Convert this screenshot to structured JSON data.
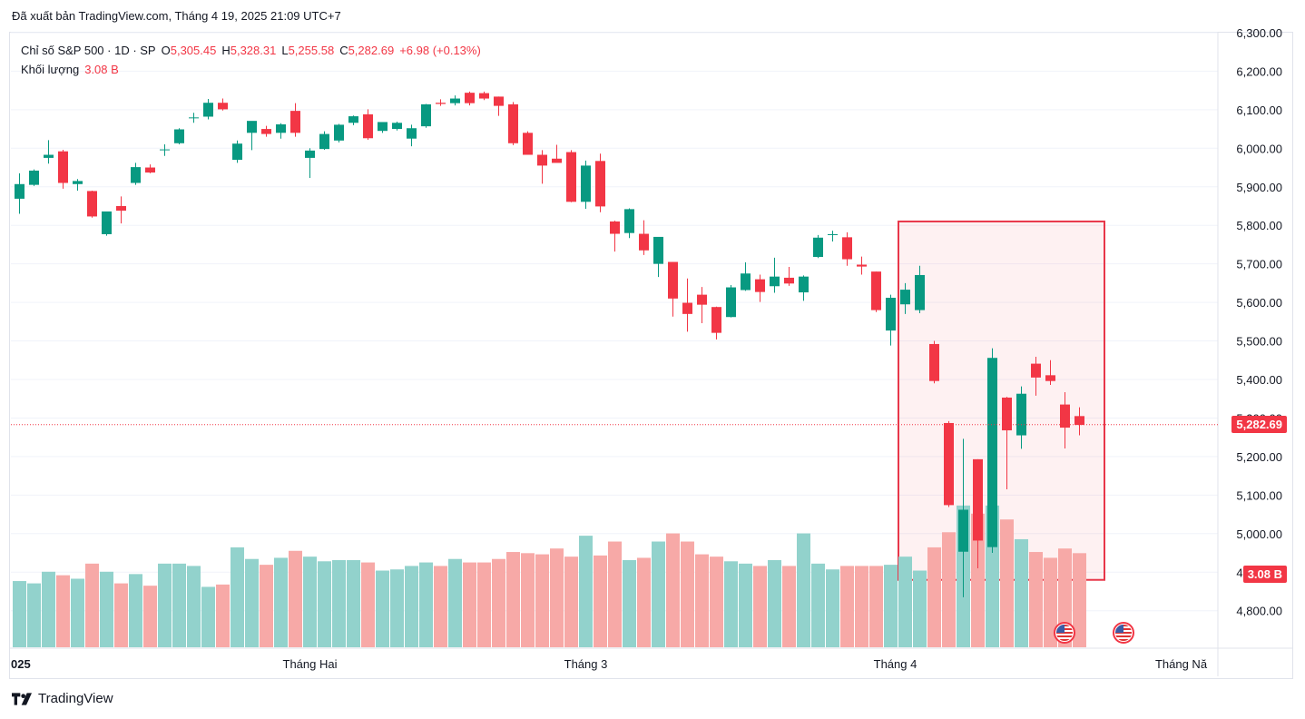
{
  "header": {
    "published": "Đã xuất bản TradingView.com, Tháng 4 19, 2025 21:09 UTC+7"
  },
  "legend": {
    "symbol": "Chỉ số S&P 500 · 1D · SP",
    "o_label": "O",
    "o_value": "5,305.45",
    "h_label": "H",
    "h_value": "5,328.31",
    "l_label": "L",
    "l_value": "5,255.58",
    "c_label": "C",
    "c_value": "5,282.69",
    "change": "+6.98 (+0.13%)",
    "volume_label": "Khối lượng",
    "volume_value": "3.08 B"
  },
  "price_badge": "5,282.69",
  "volume_badge": "3.08 B",
  "footer": {
    "brand": "TradingView"
  },
  "colors": {
    "up": "#089981",
    "down": "#f23645",
    "volume_up": "#92d2cc",
    "volume_down": "#f7a9a7",
    "highlight_border": "#e8374a",
    "highlight_fill": "rgba(242,54,69,0.07)"
  },
  "chart_data": {
    "type": "candlestick",
    "title": "Chỉ số S&P 500 · 1D · SP",
    "ylim": [
      4700,
      6330
    ],
    "y_ticks": [
      {
        "value": 6300,
        "label": "6,300.00"
      },
      {
        "value": 6200,
        "label": "6,200.00"
      },
      {
        "value": 6100,
        "label": "6,100.00"
      },
      {
        "value": 6000,
        "label": "6,000.00"
      },
      {
        "value": 5900,
        "label": "5,900.00"
      },
      {
        "value": 5800,
        "label": "5,800.00"
      },
      {
        "value": 5700,
        "label": "5,700.00"
      },
      {
        "value": 5600,
        "label": "5,600.00"
      },
      {
        "value": 5500,
        "label": "5,500.00"
      },
      {
        "value": 5400,
        "label": "5,400.00"
      },
      {
        "value": 5300,
        "label": "5,300.00"
      },
      {
        "value": 5200,
        "label": "5,200.00"
      },
      {
        "value": 5100,
        "label": "5,100.00"
      },
      {
        "value": 5000,
        "label": "5,000.00"
      },
      {
        "value": 4900,
        "label": "4,900.00"
      },
      {
        "value": 4800,
        "label": "4,800.00"
      }
    ],
    "x_ticks": [
      {
        "index": 0,
        "label": "025"
      },
      {
        "index": 20,
        "label": "Tháng Hai"
      },
      {
        "index": 39,
        "label": "Tháng 3"
      },
      {
        "index": 60,
        "label": "Tháng 4"
      },
      {
        "index": 80,
        "label": "Tháng Nă"
      }
    ],
    "last_price": 5282.69,
    "highlight_range": {
      "from_index": 60.5,
      "to_index": 74.5,
      "price_from": 4880,
      "price_to": 5810
    },
    "candles": [
      {
        "o": 5869,
        "h": 5935,
        "l": 5830,
        "c": 5907,
        "v": 0.57
      },
      {
        "o": 5905,
        "h": 5945,
        "l": 5902,
        "c": 5942,
        "v": 0.55
      },
      {
        "o": 5975,
        "h": 6021,
        "l": 5960,
        "c": 5983,
        "v": 0.65
      },
      {
        "o": 5992,
        "h": 5996,
        "l": 5895,
        "c": 5910,
        "v": 0.62
      },
      {
        "o": 5907,
        "h": 5920,
        "l": 5890,
        "c": 5915,
        "v": 0.59
      },
      {
        "o": 5889,
        "h": 5890,
        "l": 5820,
        "c": 5823,
        "v": 0.72
      },
      {
        "o": 5777,
        "h": 5835,
        "l": 5773,
        "c": 5836,
        "v": 0.65
      },
      {
        "o": 5850,
        "h": 5875,
        "l": 5805,
        "c": 5838,
        "v": 0.55
      },
      {
        "o": 5910,
        "h": 5962,
        "l": 5905,
        "c": 5951,
        "v": 0.63
      },
      {
        "o": 5950,
        "h": 5958,
        "l": 5935,
        "c": 5937,
        "v": 0.53
      },
      {
        "o": 5995,
        "h": 6010,
        "l": 5980,
        "c": 5997,
        "v": 0.72
      },
      {
        "o": 6013,
        "h": 6052,
        "l": 6010,
        "c": 6049,
        "v": 0.72
      },
      {
        "o": 6078,
        "h": 6092,
        "l": 6066,
        "c": 6080,
        "v": 0.7
      },
      {
        "o": 6082,
        "h": 6128,
        "l": 6075,
        "c": 6118,
        "v": 0.52
      },
      {
        "o": 6118,
        "h": 6129,
        "l": 6098,
        "c": 6101,
        "v": 0.54
      },
      {
        "o": 5970,
        "h": 6020,
        "l": 5962,
        "c": 6012,
        "v": 0.86
      },
      {
        "o": 6040,
        "h": 6070,
        "l": 5995,
        "c": 6071,
        "v": 0.76
      },
      {
        "o": 6050,
        "h": 6058,
        "l": 6030,
        "c": 6037,
        "v": 0.71
      },
      {
        "o": 6040,
        "h": 6065,
        "l": 6025,
        "c": 6062,
        "v": 0.77
      },
      {
        "o": 6097,
        "h": 6117,
        "l": 6030,
        "c": 6040,
        "v": 0.83
      },
      {
        "o": 5975,
        "h": 6000,
        "l": 5923,
        "c": 5994,
        "v": 0.78
      },
      {
        "o": 5998,
        "h": 6044,
        "l": 5996,
        "c": 6037,
        "v": 0.74
      },
      {
        "o": 6020,
        "h": 6063,
        "l": 6015,
        "c": 6061,
        "v": 0.75
      },
      {
        "o": 6066,
        "h": 6085,
        "l": 6060,
        "c": 6083,
        "v": 0.75
      },
      {
        "o": 6088,
        "h": 6101,
        "l": 6022,
        "c": 6026,
        "v": 0.73
      },
      {
        "o": 6045,
        "h": 6067,
        "l": 6040,
        "c": 6068,
        "v": 0.66
      },
      {
        "o": 6050,
        "h": 6069,
        "l": 6046,
        "c": 6066,
        "v": 0.67
      },
      {
        "o": 6025,
        "h": 6061,
        "l": 6005,
        "c": 6052,
        "v": 0.7
      },
      {
        "o": 6057,
        "h": 6115,
        "l": 6053,
        "c": 6114,
        "v": 0.73
      },
      {
        "o": 6118,
        "h": 6127,
        "l": 6110,
        "c": 6115,
        "v": 0.7
      },
      {
        "o": 6117,
        "h": 6137,
        "l": 6111,
        "c": 6129,
        "v": 0.76
      },
      {
        "o": 6144,
        "h": 6147,
        "l": 6111,
        "c": 6117,
        "v": 0.73
      },
      {
        "o": 6143,
        "h": 6147,
        "l": 6125,
        "c": 6129,
        "v": 0.73
      },
      {
        "o": 6134,
        "h": 6134,
        "l": 6084,
        "c": 6110,
        "v": 0.76
      },
      {
        "o": 6114,
        "h": 6120,
        "l": 6008,
        "c": 6013,
        "v": 0.82
      },
      {
        "o": 6040,
        "h": 6044,
        "l": 5983,
        "c": 5983,
        "v": 0.81
      },
      {
        "o": 5983,
        "h": 5995,
        "l": 5908,
        "c": 5955,
        "v": 0.8
      },
      {
        "o": 5973,
        "h": 6009,
        "l": 5965,
        "c": 5962,
        "v": 0.85
      },
      {
        "o": 5990,
        "h": 5995,
        "l": 5860,
        "c": 5861,
        "v": 0.78
      },
      {
        "o": 5861,
        "h": 5968,
        "l": 5843,
        "c": 5955,
        "v": 0.96
      },
      {
        "o": 5967,
        "h": 5986,
        "l": 5834,
        "c": 5849,
        "v": 0.79
      },
      {
        "o": 5810,
        "h": 5812,
        "l": 5732,
        "c": 5778,
        "v": 0.91
      },
      {
        "o": 5780,
        "h": 5844,
        "l": 5767,
        "c": 5842,
        "v": 0.75
      },
      {
        "o": 5778,
        "h": 5813,
        "l": 5723,
        "c": 5735,
        "v": 0.77
      },
      {
        "o": 5700,
        "h": 5763,
        "l": 5666,
        "c": 5770,
        "v": 0.91
      },
      {
        "o": 5705,
        "h": 5705,
        "l": 5563,
        "c": 5610,
        "v": 0.98
      },
      {
        "o": 5599,
        "h": 5662,
        "l": 5524,
        "c": 5570,
        "v": 0.91
      },
      {
        "o": 5620,
        "h": 5640,
        "l": 5546,
        "c": 5594,
        "v": 0.8
      },
      {
        "o": 5588,
        "h": 5589,
        "l": 5504,
        "c": 5521,
        "v": 0.78
      },
      {
        "o": 5562,
        "h": 5645,
        "l": 5561,
        "c": 5639,
        "v": 0.74
      },
      {
        "o": 5632,
        "h": 5704,
        "l": 5630,
        "c": 5675,
        "v": 0.72
      },
      {
        "o": 5660,
        "h": 5672,
        "l": 5601,
        "c": 5627,
        "v": 0.7
      },
      {
        "o": 5642,
        "h": 5716,
        "l": 5625,
        "c": 5667,
        "v": 0.75
      },
      {
        "o": 5664,
        "h": 5692,
        "l": 5643,
        "c": 5649,
        "v": 0.7
      },
      {
        "o": 5626,
        "h": 5670,
        "l": 5604,
        "c": 5667,
        "v": 0.98
      },
      {
        "o": 5718,
        "h": 5775,
        "l": 5715,
        "c": 5768,
        "v": 0.72
      },
      {
        "o": 5775,
        "h": 5786,
        "l": 5758,
        "c": 5777,
        "v": 0.67
      },
      {
        "o": 5769,
        "h": 5782,
        "l": 5695,
        "c": 5712,
        "v": 0.7
      },
      {
        "o": 5698,
        "h": 5719,
        "l": 5672,
        "c": 5693,
        "v": 0.7
      },
      {
        "o": 5680,
        "h": 5680,
        "l": 5575,
        "c": 5580,
        "v": 0.7
      },
      {
        "o": 5527,
        "h": 5620,
        "l": 5488,
        "c": 5612,
        "v": 0.71
      },
      {
        "o": 5595,
        "h": 5650,
        "l": 5570,
        "c": 5633,
        "v": 0.78
      },
      {
        "o": 5580,
        "h": 5695,
        "l": 5572,
        "c": 5671,
        "v": 0.66
      }
    ],
    "highlight_candles": [
      {
        "o": 5492,
        "h": 5500,
        "l": 5390,
        "c": 5396,
        "v": 0.86
      },
      {
        "o": 5287,
        "h": 5292,
        "l": 5069,
        "c": 5074,
        "v": 0.99
      },
      {
        "o": 4953,
        "h": 5246,
        "l": 4835,
        "c": 5062,
        "v": 1.22
      },
      {
        "o": 5193,
        "h": 5193,
        "l": 4910,
        "c": 4982,
        "v": 1.15
      },
      {
        "o": 4965,
        "h": 5481,
        "l": 4950,
        "c": 5456,
        "v": 1.22
      },
      {
        "o": 5353,
        "h": 5355,
        "l": 5115,
        "c": 5268,
        "v": 1.1
      },
      {
        "o": 5255,
        "h": 5382,
        "l": 5220,
        "c": 5363,
        "v": 0.93
      },
      {
        "o": 5441,
        "h": 5459,
        "l": 5358,
        "c": 5405,
        "v": 0.82
      },
      {
        "o": 5411,
        "h": 5450,
        "l": 5386,
        "c": 5396,
        "v": 0.77
      },
      {
        "o": 5335,
        "h": 5367,
        "l": 5221,
        "c": 5275,
        "v": 0.85
      },
      {
        "o": 5305,
        "h": 5328,
        "l": 5255,
        "c": 5282,
        "v": 0.81
      }
    ]
  }
}
